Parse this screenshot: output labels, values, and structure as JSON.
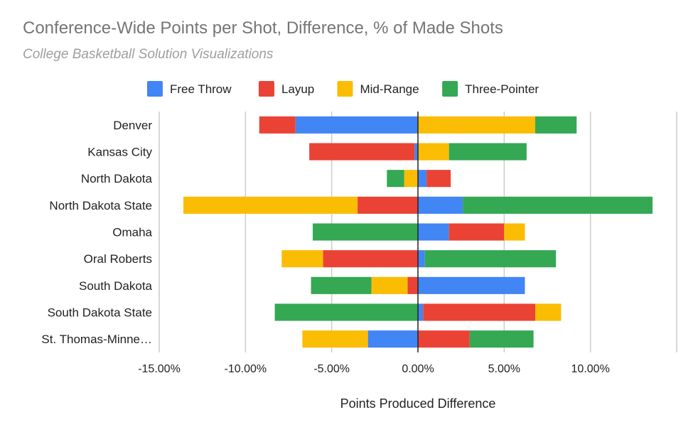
{
  "chart_data": {
    "type": "bar",
    "orientation": "horizontal",
    "stacked": true,
    "title": "Conference-Wide Points per Shot, Difference, % of Made Shots",
    "subtitle": "College Basketball Solution Visualizations",
    "xlabel": "Points Produced Difference",
    "ylabel": "",
    "xlim": [
      -15,
      15
    ],
    "xticks": [
      -15,
      -10,
      -5,
      0,
      5,
      10
    ],
    "xtick_labels": [
      "-15.00%",
      "-10.00%",
      "-5.00%",
      "0.00%",
      "5.00%",
      "10.00%"
    ],
    "grid": true,
    "legend": "top",
    "categories": [
      "Denver",
      "Kansas City",
      "North Dakota",
      "North Dakota State",
      "Omaha",
      "Oral Roberts",
      "South Dakota",
      "South Dakota State",
      "St. Thomas-Minne…"
    ],
    "series": [
      {
        "name": "Free Throw",
        "color": "#4285f4",
        "values": [
          -7.1,
          -0.2,
          0.5,
          2.6,
          1.8,
          0.4,
          6.2,
          0.3,
          -2.9
        ]
      },
      {
        "name": "Layup",
        "color": "#ea4335",
        "values": [
          -2.1,
          -6.1,
          1.4,
          -3.5,
          3.2,
          -5.5,
          -0.6,
          6.5,
          3.0
        ]
      },
      {
        "name": "Mid-Range",
        "color": "#fbbc04",
        "values": [
          6.8,
          1.8,
          -0.8,
          -10.1,
          1.2,
          -2.4,
          -2.1,
          1.5,
          -3.8
        ]
      },
      {
        "name": "Three-Pointer",
        "color": "#34a853",
        "values": [
          2.4,
          4.5,
          -1.0,
          11.0,
          -6.1,
          7.6,
          -3.5,
          -8.3,
          3.7
        ]
      }
    ]
  }
}
